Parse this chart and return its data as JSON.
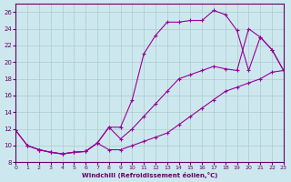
{
  "xlabel": "Windchill (Refroidissement éolien,°C)",
  "background_color": "#cce8ee",
  "grid_color": "#aacccc",
  "line_color": "#990099",
  "xlim": [
    0,
    23
  ],
  "ylim": [
    8,
    27
  ],
  "xticks": [
    0,
    1,
    2,
    3,
    4,
    5,
    6,
    7,
    8,
    9,
    10,
    11,
    12,
    13,
    14,
    15,
    16,
    17,
    18,
    19,
    20,
    21,
    22,
    23
  ],
  "yticks": [
    8,
    10,
    12,
    14,
    16,
    18,
    20,
    22,
    24,
    26
  ],
  "curve1_x": [
    0,
    1,
    2,
    3,
    4,
    5,
    6,
    7,
    8,
    9,
    10,
    11,
    12,
    13,
    14,
    15,
    16,
    17,
    18,
    19,
    20,
    21,
    22,
    23
  ],
  "curve1_y": [
    11.8,
    10.0,
    9.5,
    9.2,
    9.0,
    9.2,
    9.3,
    10.3,
    12.2,
    12.2,
    15.5,
    21.0,
    23.2,
    24.8,
    24.8,
    25.0,
    25.0,
    26.2,
    25.7,
    23.8,
    19.0,
    23.0,
    21.5,
    19.0
  ],
  "curve2_x": [
    0,
    1,
    2,
    3,
    4,
    5,
    6,
    7,
    8,
    9,
    10,
    11,
    12,
    13,
    14,
    15,
    16,
    17,
    18,
    19,
    20,
    21,
    22,
    23
  ],
  "curve2_y": [
    11.8,
    10.0,
    9.5,
    9.2,
    9.0,
    9.2,
    9.3,
    10.3,
    12.2,
    10.8,
    12.0,
    13.5,
    15.0,
    16.5,
    18.0,
    18.5,
    19.0,
    19.5,
    19.2,
    19.0,
    24.0,
    23.0,
    21.5,
    19.0
  ],
  "curve3_x": [
    1,
    2,
    3,
    4,
    5,
    6,
    7,
    8,
    9,
    10,
    11,
    12,
    13,
    14,
    15,
    16,
    17,
    18,
    19,
    20,
    21,
    22,
    23
  ],
  "curve3_y": [
    10.0,
    9.5,
    9.2,
    9.0,
    9.2,
    9.3,
    10.3,
    9.5,
    9.5,
    10.0,
    10.5,
    11.0,
    11.5,
    12.5,
    13.5,
    14.5,
    15.5,
    16.5,
    17.0,
    17.5,
    18.0,
    18.8,
    19.0
  ]
}
